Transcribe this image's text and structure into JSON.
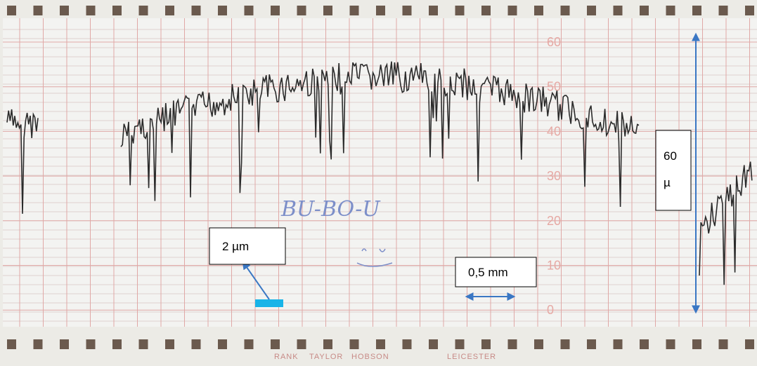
{
  "paper": {
    "scale_labels": [
      "60",
      "50",
      "40",
      "30",
      "20",
      "10",
      "0"
    ],
    "handwriting": "BU-BO-U",
    "maker": [
      "RANK",
      "TAYLOR",
      "HOBSON",
      "LEICESTER"
    ]
  },
  "annotations": {
    "vertical_unit": "2 µm",
    "horizontal_unit": "0,5 mm",
    "full_scale": [
      "60",
      "µ"
    ]
  }
}
